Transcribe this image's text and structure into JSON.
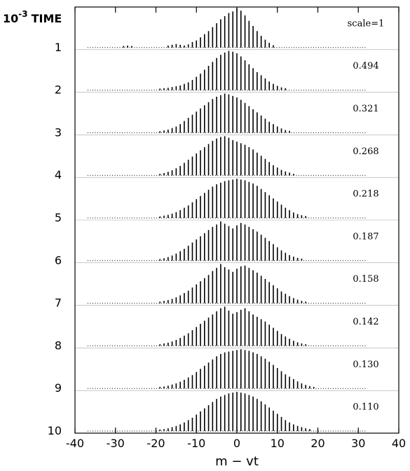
{
  "chart_data": {
    "type": "bar",
    "y_axis_title_prefix": "10",
    "y_axis_title_exponent": "-3",
    "y_axis_title_word": "TIME",
    "xlabel": "m − vt",
    "xlim": [
      -40,
      40
    ],
    "x_ticks": [
      "-40",
      "-30",
      "-20",
      "-10",
      "0",
      "10",
      "20",
      "30",
      "40"
    ],
    "x": [
      -30,
      -29,
      -28,
      -27,
      -26,
      -25,
      -24,
      -23,
      -22,
      -21,
      -20,
      -19,
      -18,
      -17,
      -16,
      -15,
      -14,
      -13,
      -12,
      -11,
      -10,
      -9,
      -8,
      -7,
      -6,
      -5,
      -4,
      -3,
      -2,
      -1,
      0,
      1,
      2,
      3,
      4,
      5,
      6,
      7,
      8,
      9,
      10,
      11,
      12,
      13,
      14,
      15,
      16,
      17,
      18,
      19,
      20,
      21,
      22,
      23,
      24,
      25,
      26,
      27,
      28,
      29,
      30
    ],
    "series": [
      {
        "time_label": "1",
        "scale_label": "scale=1",
        "values": [
          0.02,
          0.03,
          0.04,
          0.05,
          0.04,
          0.03,
          0.02,
          0.02,
          0.02,
          0.02,
          0.02,
          0.02,
          0.03,
          0.05,
          0.07,
          0.09,
          0.07,
          0.05,
          0.08,
          0.14,
          0.18,
          0.26,
          0.34,
          0.42,
          0.52,
          0.62,
          0.72,
          0.8,
          0.88,
          0.92,
          1.0,
          0.94,
          0.82,
          0.68,
          0.55,
          0.42,
          0.3,
          0.2,
          0.12,
          0.06,
          0.03,
          0.02,
          0.02,
          0.02,
          0.02,
          0.02,
          0.02,
          0.02,
          0.02,
          0.02,
          0.02,
          0.02,
          0.02,
          0.02,
          0.02,
          0.02,
          0.02,
          0.02,
          0.02,
          0.02,
          0.02
        ]
      },
      {
        "time_label": "2",
        "scale_label": "0.494",
        "values": [
          0.02,
          0.02,
          0.02,
          0.02,
          0.02,
          0.02,
          0.02,
          0.02,
          0.02,
          0.02,
          0.03,
          0.04,
          0.05,
          0.06,
          0.08,
          0.1,
          0.12,
          0.16,
          0.2,
          0.26,
          0.34,
          0.42,
          0.52,
          0.62,
          0.72,
          0.82,
          0.9,
          0.96,
          1.0,
          0.98,
          0.94,
          0.86,
          0.76,
          0.66,
          0.56,
          0.46,
          0.38,
          0.3,
          0.22,
          0.16,
          0.11,
          0.07,
          0.05,
          0.03,
          0.02,
          0.02,
          0.02,
          0.02,
          0.02,
          0.02,
          0.02,
          0.02,
          0.02,
          0.02,
          0.02,
          0.02,
          0.02,
          0.02,
          0.02,
          0.02,
          0.02
        ]
      },
      {
        "time_label": "3",
        "scale_label": "0.321",
        "values": [
          0.02,
          0.02,
          0.02,
          0.02,
          0.02,
          0.02,
          0.02,
          0.02,
          0.02,
          0.02,
          0.03,
          0.04,
          0.06,
          0.08,
          0.12,
          0.16,
          0.22,
          0.3,
          0.38,
          0.46,
          0.54,
          0.62,
          0.7,
          0.78,
          0.86,
          0.92,
          0.96,
          1.0,
          0.98,
          0.94,
          0.9,
          0.84,
          0.76,
          0.68,
          0.6,
          0.52,
          0.44,
          0.36,
          0.28,
          0.22,
          0.16,
          0.11,
          0.07,
          0.05,
          0.03,
          0.02,
          0.02,
          0.02,
          0.02,
          0.02,
          0.02,
          0.02,
          0.02,
          0.02,
          0.02,
          0.02,
          0.02,
          0.02,
          0.02,
          0.02,
          0.02
        ]
      },
      {
        "time_label": "4",
        "scale_label": "0.268",
        "values": [
          0.02,
          0.02,
          0.02,
          0.02,
          0.02,
          0.02,
          0.02,
          0.02,
          0.02,
          0.02,
          0.03,
          0.04,
          0.06,
          0.09,
          0.13,
          0.18,
          0.24,
          0.32,
          0.4,
          0.48,
          0.56,
          0.64,
          0.72,
          0.8,
          0.88,
          0.94,
          0.98,
          1.0,
          0.96,
          0.9,
          0.86,
          0.82,
          0.78,
          0.72,
          0.66,
          0.58,
          0.5,
          0.42,
          0.34,
          0.26,
          0.2,
          0.14,
          0.1,
          0.07,
          0.04,
          0.03,
          0.02,
          0.02,
          0.02,
          0.02,
          0.02,
          0.02,
          0.02,
          0.02,
          0.02,
          0.02,
          0.02,
          0.02,
          0.02,
          0.02,
          0.02
        ]
      },
      {
        "time_label": "5",
        "scale_label": "0.218",
        "values": [
          0.02,
          0.02,
          0.02,
          0.02,
          0.02,
          0.02,
          0.02,
          0.02,
          0.02,
          0.02,
          0.03,
          0.04,
          0.06,
          0.08,
          0.11,
          0.15,
          0.2,
          0.26,
          0.32,
          0.4,
          0.48,
          0.56,
          0.64,
          0.72,
          0.8,
          0.86,
          0.9,
          0.94,
          0.96,
          0.98,
          1.0,
          0.98,
          0.96,
          0.92,
          0.88,
          0.82,
          0.74,
          0.66,
          0.58,
          0.5,
          0.42,
          0.34,
          0.26,
          0.2,
          0.14,
          0.1,
          0.07,
          0.05,
          0.03,
          0.02,
          0.02,
          0.02,
          0.02,
          0.02,
          0.02,
          0.02,
          0.02,
          0.02,
          0.02,
          0.02,
          0.02
        ]
      },
      {
        "time_label": "6",
        "scale_label": "0.187",
        "values": [
          0.02,
          0.02,
          0.02,
          0.02,
          0.02,
          0.02,
          0.02,
          0.02,
          0.02,
          0.02,
          0.03,
          0.04,
          0.06,
          0.09,
          0.13,
          0.18,
          0.24,
          0.3,
          0.38,
          0.46,
          0.54,
          0.62,
          0.7,
          0.78,
          0.86,
          0.92,
          1.0,
          0.94,
          0.88,
          0.82,
          0.9,
          0.96,
          0.92,
          0.86,
          0.8,
          0.74,
          0.66,
          0.58,
          0.5,
          0.42,
          0.34,
          0.26,
          0.2,
          0.14,
          0.1,
          0.07,
          0.05,
          0.03,
          0.02,
          0.02,
          0.02,
          0.02,
          0.02,
          0.02,
          0.02,
          0.02,
          0.02,
          0.02,
          0.02,
          0.02,
          0.02
        ]
      },
      {
        "time_label": "7",
        "scale_label": "0.158",
        "values": [
          0.02,
          0.02,
          0.02,
          0.02,
          0.02,
          0.02,
          0.02,
          0.02,
          0.02,
          0.02,
          0.03,
          0.04,
          0.06,
          0.08,
          0.11,
          0.15,
          0.2,
          0.26,
          0.32,
          0.4,
          0.48,
          0.56,
          0.64,
          0.72,
          0.82,
          0.9,
          1.0,
          0.92,
          0.86,
          0.8,
          0.88,
          0.94,
          0.96,
          0.9,
          0.84,
          0.78,
          0.7,
          0.62,
          0.54,
          0.46,
          0.38,
          0.3,
          0.24,
          0.18,
          0.13,
          0.09,
          0.06,
          0.04,
          0.03,
          0.02,
          0.02,
          0.02,
          0.02,
          0.02,
          0.02,
          0.02,
          0.02,
          0.02,
          0.02,
          0.02,
          0.02
        ]
      },
      {
        "time_label": "8",
        "scale_label": "0.142",
        "values": [
          0.02,
          0.02,
          0.02,
          0.02,
          0.02,
          0.02,
          0.02,
          0.02,
          0.02,
          0.02,
          0.03,
          0.04,
          0.06,
          0.08,
          0.11,
          0.15,
          0.2,
          0.26,
          0.32,
          0.4,
          0.48,
          0.56,
          0.64,
          0.72,
          0.8,
          0.88,
          0.96,
          1.0,
          0.9,
          0.82,
          0.86,
          0.92,
          0.96,
          0.88,
          0.8,
          0.74,
          0.68,
          0.62,
          0.54,
          0.46,
          0.38,
          0.3,
          0.24,
          0.18,
          0.13,
          0.09,
          0.06,
          0.04,
          0.03,
          0.02,
          0.02,
          0.02,
          0.02,
          0.02,
          0.02,
          0.02,
          0.02,
          0.02,
          0.02,
          0.02,
          0.02
        ]
      },
      {
        "time_label": "9",
        "scale_label": "0.130",
        "values": [
          0.02,
          0.02,
          0.02,
          0.02,
          0.02,
          0.02,
          0.02,
          0.02,
          0.02,
          0.02,
          0.03,
          0.04,
          0.05,
          0.07,
          0.1,
          0.13,
          0.17,
          0.22,
          0.28,
          0.34,
          0.42,
          0.5,
          0.58,
          0.66,
          0.74,
          0.82,
          0.88,
          0.92,
          0.94,
          0.96,
          0.98,
          1.0,
          0.98,
          0.96,
          0.92,
          0.88,
          0.82,
          0.76,
          0.68,
          0.6,
          0.52,
          0.44,
          0.36,
          0.3,
          0.24,
          0.18,
          0.13,
          0.09,
          0.06,
          0.04,
          0.03,
          0.02,
          0.02,
          0.02,
          0.02,
          0.02,
          0.02,
          0.02,
          0.02,
          0.02,
          0.02
        ]
      },
      {
        "time_label": "10",
        "scale_label": "0.110",
        "values": [
          0.02,
          0.02,
          0.02,
          0.02,
          0.02,
          0.02,
          0.02,
          0.02,
          0.02,
          0.02,
          0.03,
          0.04,
          0.05,
          0.07,
          0.1,
          0.13,
          0.17,
          0.22,
          0.28,
          0.34,
          0.42,
          0.5,
          0.58,
          0.66,
          0.74,
          0.82,
          0.88,
          0.92,
          0.96,
          0.98,
          1.0,
          0.98,
          0.96,
          0.92,
          0.88,
          0.82,
          0.76,
          0.68,
          0.6,
          0.52,
          0.44,
          0.36,
          0.28,
          0.22,
          0.17,
          0.13,
          0.1,
          0.07,
          0.05,
          0.03,
          0.02,
          0.02,
          0.02,
          0.02,
          0.02,
          0.02,
          0.02,
          0.02,
          0.02,
          0.02,
          0.02
        ]
      }
    ]
  }
}
